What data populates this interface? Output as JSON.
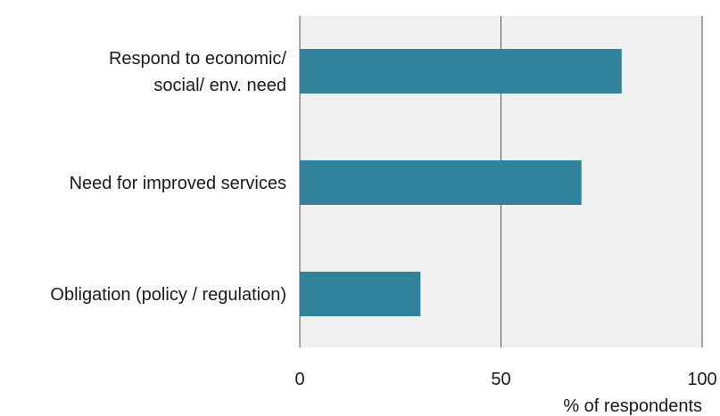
{
  "chart_data": {
    "type": "bar",
    "orientation": "horizontal",
    "categories": [
      [
        "Respond to economic/",
        "social/ env. need"
      ],
      [
        "Need for improved services"
      ],
      [
        "Obligation (policy / regulation)"
      ]
    ],
    "values": [
      80,
      70,
      30
    ],
    "xlim": [
      0,
      100
    ],
    "xticks": [
      "0",
      "50",
      "100"
    ],
    "xlabel": "% of respondents",
    "grid": true,
    "colors": {
      "bar": "#2f8299",
      "plot_background": "#f0f0f0",
      "gridline": "#555555"
    }
  }
}
